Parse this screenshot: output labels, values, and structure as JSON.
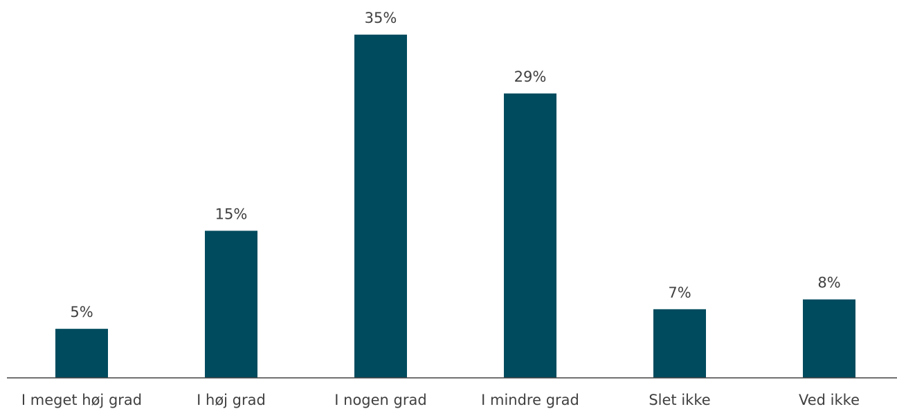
{
  "chart_data": {
    "type": "bar",
    "categories": [
      "I meget høj grad",
      "I høj grad",
      "I nogen grad",
      "I mindre grad",
      "Slet ikke",
      "Ved ikke"
    ],
    "values": [
      5,
      15,
      35,
      29,
      7,
      8
    ],
    "value_labels": [
      "5%",
      "15%",
      "35%",
      "29%",
      "7%",
      "8%"
    ],
    "unit": "%",
    "ylim": [
      0,
      35
    ],
    "grid": false,
    "legend": "none",
    "bar_color": "#004b5e",
    "text_color": "#404040",
    "axis_color": "#404040"
  }
}
